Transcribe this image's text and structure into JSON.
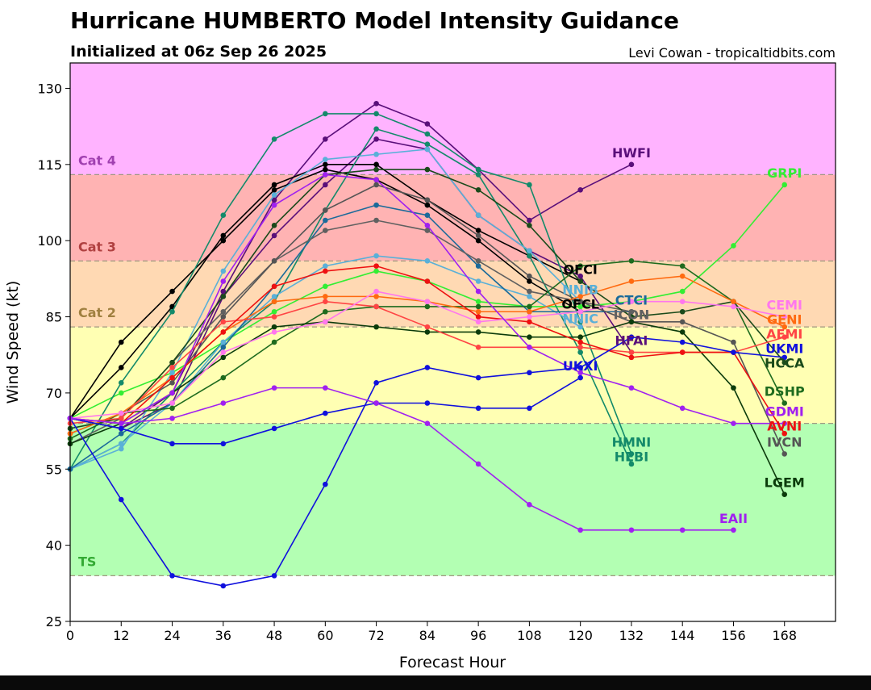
{
  "chart_data": {
    "type": "line",
    "title": "Hurricane HUMBERTO Model Intensity Guidance",
    "subtitle": "Initialized at 06z Sep 26 2025",
    "credit": "Levi Cowan - tropicaltidbits.com",
    "xlabel": "Forecast Hour",
    "ylabel": "Wind Speed (kt)",
    "xlim": [
      0,
      180
    ],
    "ylim": [
      25,
      135
    ],
    "xticks": [
      0,
      12,
      24,
      36,
      48,
      60,
      72,
      84,
      96,
      108,
      120,
      132,
      144,
      156,
      168
    ],
    "yticks": [
      25,
      40,
      55,
      70,
      85,
      100,
      115,
      130
    ],
    "x": [
      0,
      12,
      24,
      36,
      48,
      60,
      72,
      84,
      96,
      108,
      120,
      132,
      144,
      156,
      168
    ],
    "bands": [
      {
        "label": "TS",
        "from": 34,
        "to": 64,
        "color": "#b3ffb3",
        "label_color": "#33aa33"
      },
      {
        "label": "",
        "from": 64,
        "to": 83,
        "color": "#ffffb3",
        "label_color": "#999933"
      },
      {
        "label": "Cat 2",
        "from": 83,
        "to": 96,
        "color": "#ffd9b3",
        "label_color": "#a08040"
      },
      {
        "label": "Cat 3",
        "from": 96,
        "to": 113,
        "color": "#ffb3b3",
        "label_color": "#b04040"
      },
      {
        "label": "Cat 4",
        "from": 113,
        "to": 135,
        "color": "#ffb3ff",
        "label_color": "#a040b0"
      }
    ],
    "series": [
      {
        "name": "HWFI",
        "color": "#5a0f7a",
        "values": [
          65,
          63,
          70,
          90,
          108,
          120,
          127,
          123,
          114,
          104,
          110,
          115,
          null,
          null,
          null
        ]
      },
      {
        "name": "HFAI",
        "color": "#5a0f7a",
        "values": [
          65,
          63,
          68,
          89,
          101,
          111,
          120,
          118,
          105,
          98,
          93,
          78,
          null,
          null,
          null
        ]
      },
      {
        "name": "GRPI",
        "color": "#33ee33",
        "values": [
          65,
          70,
          74,
          80,
          86,
          91,
          94,
          92,
          88,
          87,
          87,
          88,
          90,
          99,
          111
        ]
      },
      {
        "name": "OFCI",
        "color": "#000000",
        "values": [
          65,
          75,
          87,
          101,
          111,
          115,
          115,
          108,
          102,
          97,
          92,
          null,
          null,
          null,
          null
        ]
      },
      {
        "name": "OFCL",
        "color": "#000000",
        "values": [
          65,
          80,
          90,
          100,
          110,
          114,
          112,
          107,
          100,
          92,
          86,
          null,
          null,
          null,
          null
        ]
      },
      {
        "name": "HMNI",
        "color": "#138a6a",
        "values": [
          55,
          72,
          86,
          105,
          120,
          125,
          125,
          121,
          114,
          111,
          84,
          58,
          null,
          null,
          null
        ]
      },
      {
        "name": "HEBI",
        "color": "#138a6a",
        "values": [
          55,
          60,
          70,
          80,
          88,
          106,
          122,
          119,
          113,
          97,
          78,
          56,
          null,
          null,
          null
        ]
      },
      {
        "name": "NNIB",
        "color": "#5ab0d8",
        "values": [
          55,
          59,
          74,
          94,
          109,
          116,
          117,
          118,
          105,
          98,
          88,
          null,
          null,
          null,
          null
        ]
      },
      {
        "name": "NNIC",
        "color": "#5ab0d8",
        "values": [
          55,
          60,
          68,
          80,
          89,
          95,
          97,
          96,
          92,
          89,
          83,
          null,
          null,
          null,
          null
        ]
      },
      {
        "name": "CTCI",
        "color": "#1a6a9a",
        "values": [
          55,
          62,
          68,
          79,
          91,
          104,
          107,
          105,
          95,
          86,
          86,
          86,
          null,
          null,
          null
        ]
      },
      {
        "name": "ICON",
        "color": "#606060",
        "values": [
          60,
          65,
          76,
          86,
          96,
          102,
          104,
          102,
          96,
          90,
          88,
          86,
          null,
          null,
          null
        ]
      },
      {
        "name": "IVCN",
        "color": "#555555",
        "values": [
          62,
          66,
          72,
          85,
          96,
          106,
          111,
          108,
          101,
          93,
          88,
          84,
          84,
          80,
          58
        ]
      },
      {
        "name": "HCCA",
        "color": "#1a4a1a",
        "values": [
          63,
          65,
          76,
          89,
          103,
          113,
          114,
          114,
          110,
          103,
          92,
          85,
          86,
          88,
          76
        ]
      },
      {
        "name": "DSHP",
        "color": "#1e6b1e",
        "values": [
          61,
          66,
          67,
          73,
          80,
          86,
          87,
          87,
          87,
          87,
          95,
          96,
          95,
          88,
          68
        ]
      },
      {
        "name": "LGEM",
        "color": "#0b3b0b",
        "values": [
          60,
          64,
          70,
          77,
          83,
          84,
          83,
          82,
          82,
          81,
          81,
          84,
          82,
          71,
          50
        ]
      },
      {
        "name": "GENI",
        "color": "#ff6a10",
        "values": [
          62,
          66,
          73,
          82,
          88,
          89,
          89,
          88,
          86,
          86,
          89,
          92,
          93,
          88,
          83
        ]
      },
      {
        "name": "AEMI",
        "color": "#ff4444",
        "values": [
          64,
          65,
          75,
          84,
          85,
          88,
          87,
          83,
          79,
          79,
          79,
          78,
          78,
          78,
          81
        ]
      },
      {
        "name": "AVNI",
        "color": "#ee1111",
        "values": [
          65,
          64,
          73,
          82,
          91,
          94,
          95,
          92,
          85,
          84,
          80,
          77,
          78,
          78,
          62
        ]
      },
      {
        "name": "CEMI",
        "color": "#ff77ee",
        "values": [
          65,
          66,
          68,
          78,
          82,
          84,
          90,
          88,
          84,
          85,
          86,
          88,
          88,
          87,
          85
        ]
      },
      {
        "name": "UKMI",
        "color": "#1010dd",
        "values": [
          65,
          49,
          34,
          32,
          34,
          52,
          72,
          75,
          73,
          74,
          75,
          81,
          80,
          78,
          77
        ]
      },
      {
        "name": "UKXI",
        "color": "#1010dd",
        "values": [
          65,
          63,
          60,
          60,
          63,
          66,
          68,
          68,
          67,
          67,
          73,
          null,
          null,
          null,
          null
        ]
      },
      {
        "name": "GDMI",
        "color": "#a020f0",
        "values": [
          65,
          64,
          70,
          92,
          107,
          113,
          112,
          103,
          90,
          79,
          74,
          71,
          67,
          64,
          64
        ]
      },
      {
        "name": "EAII",
        "color": "#a020f0",
        "values": [
          65,
          64,
          65,
          68,
          71,
          71,
          68,
          64,
          56,
          48,
          43,
          43,
          43,
          43,
          null
        ]
      }
    ]
  }
}
